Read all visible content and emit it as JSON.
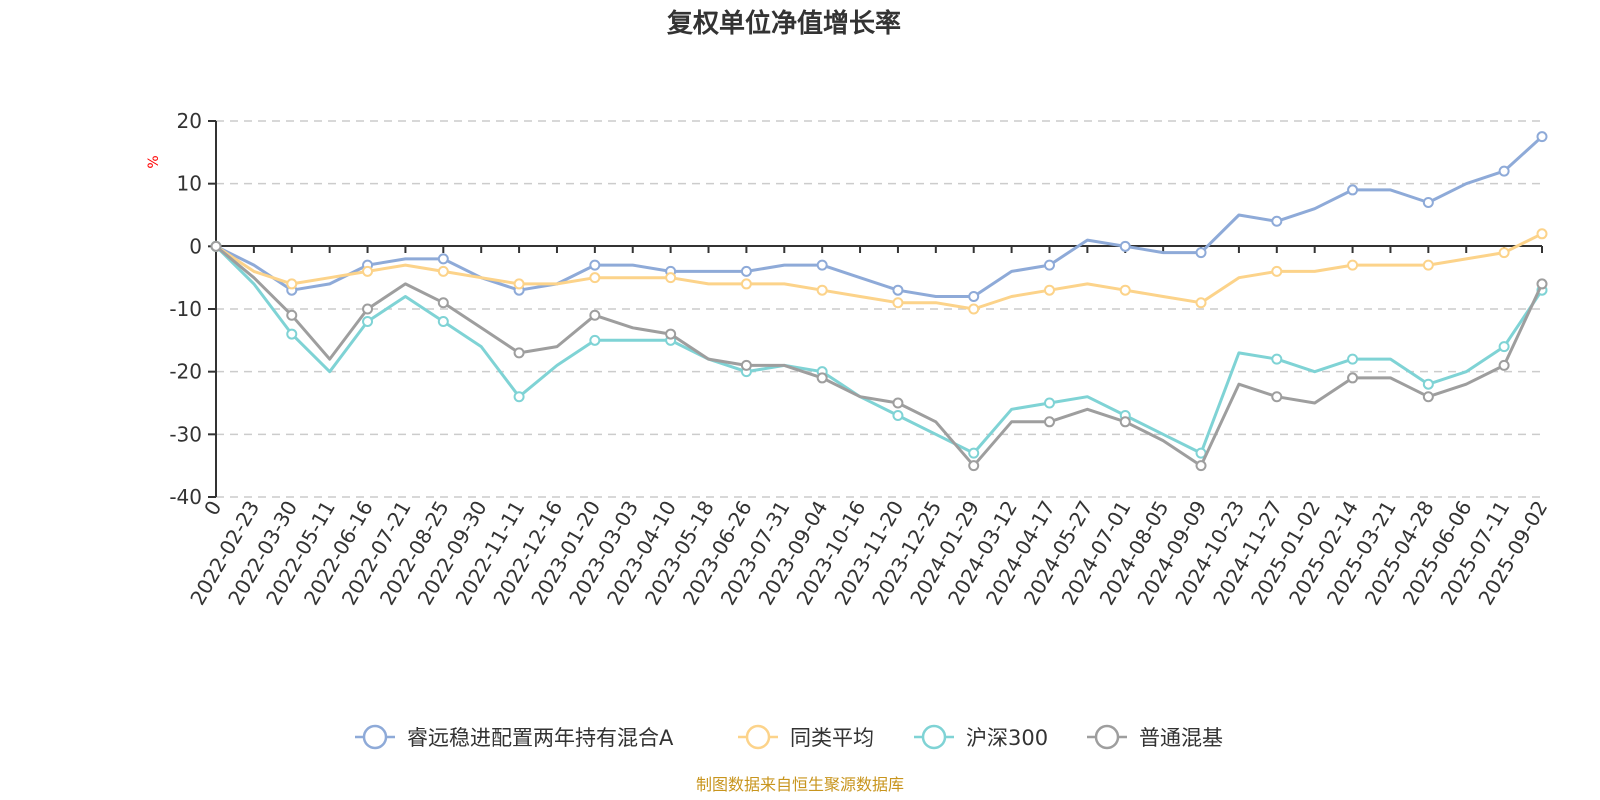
{
  "chart_data": {
    "type": "line",
    "title": "复权单位净值增长率",
    "ylabel": "%",
    "ylim": [
      -40,
      20
    ],
    "y_ticks": [
      "20",
      "10",
      "0",
      "-10",
      "-20",
      "-30",
      "-40"
    ],
    "grid": true,
    "legend_position": "bottom",
    "x_ticks": [
      "0",
      "2022-02-23",
      "2022-03-30",
      "2022-05-11",
      "2022-06-16",
      "2022-07-21",
      "2022-08-25",
      "2022-09-30",
      "2022-11-11",
      "2022-12-16",
      "2023-01-20",
      "2023-03-03",
      "2023-04-10",
      "2023-05-18",
      "2023-06-26",
      "2023-07-31",
      "2023-09-04",
      "2023-10-16",
      "2023-11-20",
      "2023-12-25",
      "2024-01-29",
      "2024-03-12",
      "2024-04-17",
      "2024-05-27",
      "2024-07-01",
      "2024-08-05",
      "2024-09-09",
      "2024-10-23",
      "2024-11-27",
      "2025-01-02",
      "2025-02-14",
      "2025-03-21",
      "2025-04-28",
      "2025-06-06",
      "2025-07-11",
      "2025-09-02"
    ],
    "series": [
      {
        "name": "睿远稳进配置两年持有混合A",
        "color": "#8eaad8",
        "values": [
          0,
          -3,
          -7,
          -6,
          -3,
          -2,
          -2,
          -5,
          -7,
          -6,
          -3,
          -3,
          -4,
          -4,
          -4,
          -3,
          -3,
          -5,
          -7,
          -8,
          -8,
          -4,
          -3,
          1,
          0,
          -1,
          -1,
          5,
          4,
          6,
          9,
          9,
          7,
          10,
          12,
          17.5
        ]
      },
      {
        "name": "同类平均",
        "color": "#fcd38a",
        "values": [
          0,
          -4,
          -6,
          -5,
          -4,
          -3,
          -4,
          -5,
          -6,
          -6,
          -5,
          -5,
          -5,
          -6,
          -6,
          -6,
          -7,
          -8,
          -9,
          -9,
          -10,
          -8,
          -7,
          -6,
          -7,
          -8,
          -9,
          -5,
          -4,
          -4,
          -3,
          -3,
          -3,
          -2,
          -1,
          2
        ]
      },
      {
        "name": "沪深300",
        "color": "#7fd3d5",
        "values": [
          0,
          -6,
          -14,
          -20,
          -12,
          -8,
          -12,
          -16,
          -24,
          -19,
          -15,
          -15,
          -15,
          -18,
          -20,
          -19,
          -20,
          -24,
          -27,
          -30,
          -33,
          -26,
          -25,
          -24,
          -27,
          -30,
          -33,
          -17,
          -18,
          -20,
          -18,
          -18,
          -22,
          -20,
          -16,
          -7
        ]
      },
      {
        "name": "普通混基",
        "color": "#9e9e9e",
        "values": [
          0,
          -5,
          -11,
          -18,
          -10,
          -6,
          -9,
          -13,
          -17,
          -16,
          -11,
          -13,
          -14,
          -18,
          -19,
          -19,
          -21,
          -24,
          -25,
          -28,
          -35,
          -28,
          -28,
          -26,
          -28,
          -31,
          -35,
          -22,
          -24,
          -25,
          -21,
          -21,
          -24,
          -22,
          -19,
          -6
        ]
      }
    ]
  },
  "source": "制图数据来自恒生聚源数据库"
}
